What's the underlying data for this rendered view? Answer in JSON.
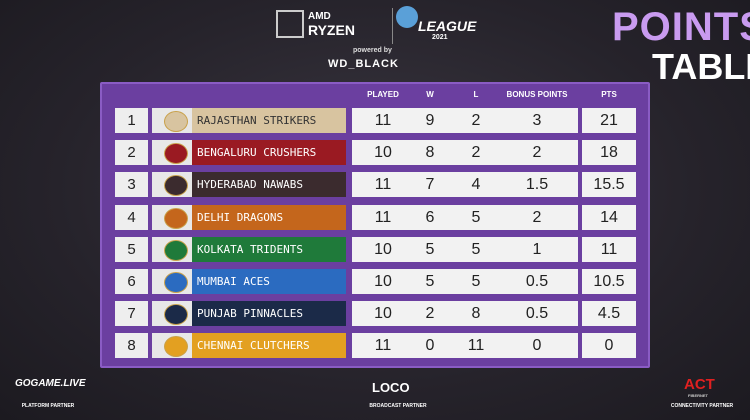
{
  "header": {
    "sponsor_top": "AMD",
    "sponsor_name": "RYZEN",
    "league": "LEAGUE",
    "league_year": "2021",
    "powered_by": "powered by",
    "powered_sponsor": "WD_BLACK",
    "title_line1": "POINTS",
    "title_line2": "TABLE"
  },
  "table": {
    "columns": [
      "PLAYED",
      "W",
      "L",
      "BONUS POINTS",
      "PTS"
    ],
    "rows": [
      {
        "rank": 1,
        "team": "RAJASTHAN STRIKERS",
        "color": "#d8c4a0",
        "played": 11,
        "w": 9,
        "l": 2,
        "bonus": 3,
        "pts": 21
      },
      {
        "rank": 2,
        "team": "BENGALURU CRUSHERS",
        "color": "#9a1a22",
        "played": 10,
        "w": 8,
        "l": 2,
        "bonus": 2,
        "pts": 18
      },
      {
        "rank": 3,
        "team": "HYDERABAD NAWABS",
        "color": "#3b2b2e",
        "played": 11,
        "w": 7,
        "l": 4,
        "bonus": 1.5,
        "pts": 15.5
      },
      {
        "rank": 4,
        "team": "DELHI DRAGONS",
        "color": "#c4661c",
        "played": 11,
        "w": 6,
        "l": 5,
        "bonus": 2,
        "pts": 14
      },
      {
        "rank": 5,
        "team": "KOLKATA TRIDENTS",
        "color": "#1f7a3a",
        "played": 10,
        "w": 5,
        "l": 5,
        "bonus": 1,
        "pts": 11
      },
      {
        "rank": 6,
        "team": "MUMBAI ACES",
        "color": "#2b6bc0",
        "played": 10,
        "w": 5,
        "l": 5,
        "bonus": 0.5,
        "pts": 10.5
      },
      {
        "rank": 7,
        "team": "PUNJAB PINNACLES",
        "color": "#1b2a48",
        "played": 10,
        "w": 2,
        "l": 8,
        "bonus": 0.5,
        "pts": 4.5
      },
      {
        "rank": 8,
        "team": "CHENNAI CLUTCHERS",
        "color": "#e3a021",
        "played": 11,
        "w": 0,
        "l": 11,
        "bonus": 0,
        "pts": 0
      }
    ]
  },
  "footer": [
    {
      "name": "GOGAME.LIVE",
      "role": "PLATFORM PARTNER"
    },
    {
      "name": "LOCO",
      "role": "BROADCAST PARTNER"
    },
    {
      "name": "ACT",
      "sub": "FIBERNET",
      "role": "CONNECTIVITY PARTNER"
    }
  ]
}
